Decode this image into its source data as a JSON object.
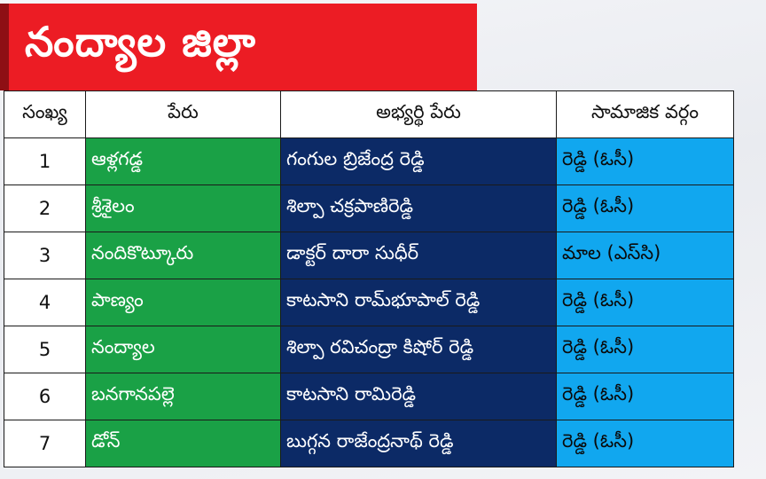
{
  "title": "నంద్యాల జిల్లా",
  "headers": [
    "సంఖ్య",
    "పేరు",
    "అభ్యర్థి పేరు",
    "సామాజిక వర్గం"
  ],
  "rows": [
    {
      "no": "1",
      "constituency": "ఆళ్లగడ్డ",
      "candidate": "గంగుల బ్రిజేంద్ర రెడ్డి",
      "caste": "రెడ్డి (ఓసీ)"
    },
    {
      "no": "2",
      "constituency": "శ్రీశైలం",
      "candidate": "శిల్పా చక్రపాణిరెడ్డి",
      "caste": "రెడ్డి (ఓసీ)"
    },
    {
      "no": "3",
      "constituency": "నందికొట్కూరు",
      "candidate": "డాక్టర్ దారా సుధీర్",
      "caste": "మాల (ఎస్‌సి)"
    },
    {
      "no": "4",
      "constituency": "పాణ్యం",
      "candidate": "కాటసాని రామ్‌భూపాల్ రెడ్డి",
      "caste": "రెడ్డి (ఓసీ)"
    },
    {
      "no": "5",
      "constituency": "నంద్యాల",
      "candidate": "శిల్పా రవిచంద్రా కిషోర్ రెడ్డి",
      "caste": "రెడ్డి (ఓసీ)"
    },
    {
      "no": "6",
      "constituency": "బనగానపల్లె",
      "candidate": "కాటసాని రామిరెడ్డి",
      "caste": "రెడ్డి (ఓసీ)"
    },
    {
      "no": "7",
      "constituency": "డోన్",
      "candidate": "బుగ్గన రాజేంద్రనాథ్ రెడ్డి",
      "caste": "రెడ్డి (ఓసీ)"
    }
  ],
  "colors": {
    "banner": "#ec1c24",
    "constituency": "#1aa146",
    "candidate": "#0c2a66",
    "caste": "#11a7ef"
  }
}
